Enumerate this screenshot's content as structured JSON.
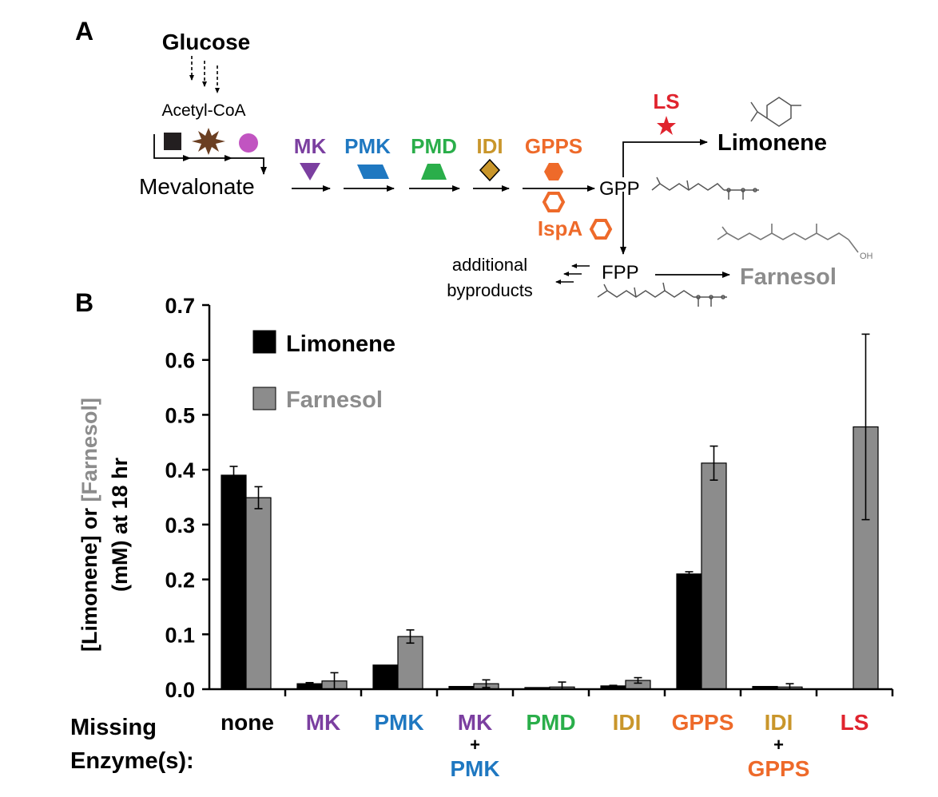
{
  "panel_a": {
    "label": "A",
    "glucose": "Glucose",
    "acetyl_coa": "Acetyl-CoA",
    "mevalonate": "Mevalonate",
    "gpp": "GPP",
    "fpp": "FPP",
    "limonene": "Limonene",
    "farnesol": "Farnesol",
    "byproducts_line1": "additional",
    "byproducts_line2": "byproducts",
    "oh_label": "OH",
    "enzymes": {
      "mk": "MK",
      "pmk": "PMK",
      "pmd": "PMD",
      "idi": "IDI",
      "gpps": "GPPS",
      "ispa": "IspA",
      "ls": "LS"
    },
    "colors": {
      "mk": "#7b3fa0",
      "pmk": "#1f78c1",
      "pmd": "#2aae4a",
      "idi": "#c9962b",
      "gpps": "#ee6a2a",
      "ls": "#e0242e",
      "farnesol": "#8c8c8c",
      "upper_square": "#231f20",
      "upper_star": "#6b3f22",
      "upper_circle": "#c154c1"
    }
  },
  "panel_b": {
    "label": "B",
    "missing_line1": "Missing",
    "missing_line2": "Enzyme(s):",
    "plus": "+",
    "category_labels": [
      {
        "top": "none",
        "top_color": "#000000"
      },
      {
        "top": "MK",
        "top_color": "#7b3fa0"
      },
      {
        "top": "PMK",
        "top_color": "#1f78c1"
      },
      {
        "top": "MK",
        "top_color": "#7b3fa0",
        "bottom": "PMK",
        "bottom_color": "#1f78c1"
      },
      {
        "top": "PMD",
        "top_color": "#2aae4a"
      },
      {
        "top": "IDI",
        "top_color": "#c9962b"
      },
      {
        "top": "GPPS",
        "top_color": "#ee6a2a"
      },
      {
        "top": "IDI",
        "top_color": "#c9962b",
        "bottom": "GPPS",
        "bottom_color": "#ee6a2a"
      },
      {
        "top": "LS",
        "top_color": "#e0242e"
      }
    ]
  },
  "chart_data": {
    "type": "bar",
    "title": "",
    "ylabel_part1": "[Limonene]",
    "ylabel_or": " or ",
    "ylabel_part2": "[Farnesol]",
    "ylabel_line2": "(mM) at 18 hr",
    "xlabel": "Missing Enzyme(s):",
    "ylim": [
      0,
      0.7
    ],
    "yticks": [
      "0.0",
      "0.1",
      "0.2",
      "0.3",
      "0.4",
      "0.5",
      "0.6",
      "0.7"
    ],
    "categories": [
      "none",
      "MK",
      "PMK",
      "MK + PMK",
      "PMD",
      "IDI",
      "GPPS",
      "IDI + GPPS",
      "LS"
    ],
    "series": [
      {
        "name": "Limonene",
        "color": "#000000",
        "values": [
          0.39,
          0.01,
          0.044,
          0.005,
          0.003,
          0.006,
          0.21,
          0.005,
          0.0
        ],
        "errors": [
          0.016,
          0.002,
          0.0,
          0.0,
          0.0,
          0.001,
          0.004,
          0.0,
          0.0
        ]
      },
      {
        "name": "Farnesol",
        "color": "#8c8c8c",
        "values": [
          0.349,
          0.015,
          0.096,
          0.01,
          0.004,
          0.016,
          0.412,
          0.004,
          0.478
        ],
        "errors": [
          0.02,
          0.015,
          0.012,
          0.007,
          0.009,
          0.005,
          0.031,
          0.006,
          0.169
        ]
      }
    ],
    "legend_position": "top-left"
  }
}
